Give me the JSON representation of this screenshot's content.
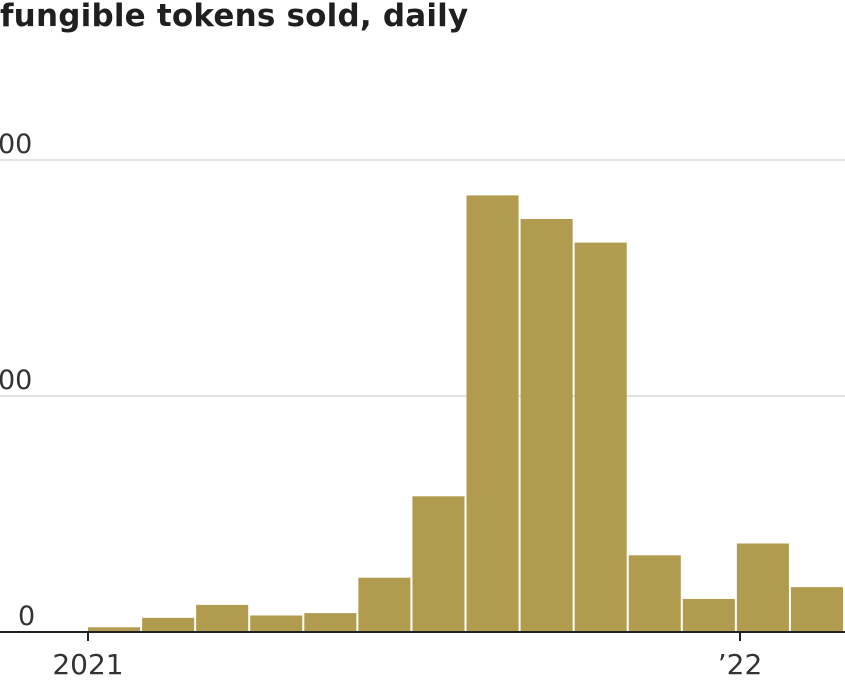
{
  "chart_data": {
    "type": "bar",
    "title": "fungible tokens sold, daily",
    "y_tick_labels": [
      "0",
      "00",
      "00"
    ],
    "y_ticks": [
      0,
      2000,
      4000
    ],
    "ylim": [
      0,
      4600
    ],
    "x_tick_labels": [
      "2021",
      "’22"
    ],
    "grid": true,
    "bar_color": "#b09b4f",
    "series": [
      {
        "x": [
          "2021-01",
          "2021-02",
          "2021-03",
          "2021-04",
          "2021-05",
          "2021-06",
          "2021-07",
          "2021-08",
          "2021-09",
          "2021-10",
          "2021-11",
          "2021-12",
          "2022-01",
          "2022-02"
        ],
        "values": [
          40,
          120,
          230,
          140,
          160,
          460,
          1150,
          3700,
          3500,
          3300,
          650,
          280,
          750,
          380
        ]
      }
    ]
  }
}
